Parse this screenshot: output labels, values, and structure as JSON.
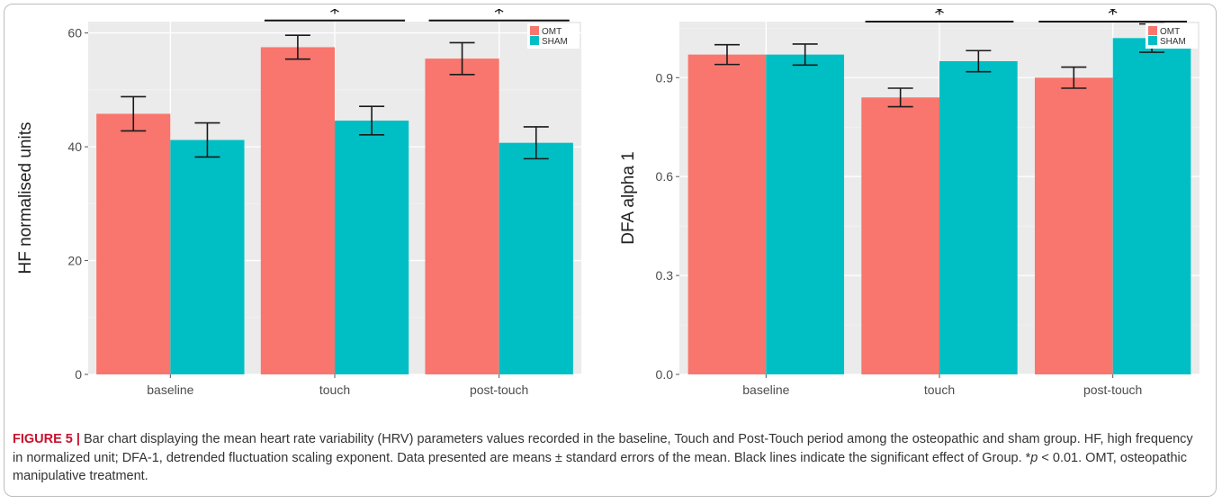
{
  "colors": {
    "omt": "#F8766D",
    "sham": "#00BFC4",
    "panel_bg": "#EBEBEB",
    "grid_major": "#FFFFFF",
    "grid_minor": "#F4F4F4",
    "error_bar": "#1a1a1a",
    "caption_label": "#C8102E"
  },
  "chart_data": [
    {
      "type": "bar",
      "categories": [
        "baseline",
        "touch",
        "post-touch"
      ],
      "series": [
        {
          "name": "OMT",
          "values": [
            45.8,
            57.5,
            55.5
          ],
          "errors": [
            3.0,
            2.1,
            2.8
          ]
        },
        {
          "name": "SHAM",
          "values": [
            41.2,
            44.6,
            40.7
          ],
          "errors": [
            3.0,
            2.5,
            2.8
          ]
        }
      ],
      "xlabel": "",
      "ylabel": "HF normalised units",
      "ylim": [
        0,
        62
      ],
      "yticks": [
        0,
        20,
        40,
        60
      ],
      "tick_labels": [
        "0",
        "20",
        "40",
        "60"
      ],
      "minor_ticks": [
        10,
        30,
        50
      ],
      "significance": [
        {
          "category": "touch",
          "label": "*",
          "y": 62.2
        },
        {
          "category": "post-touch",
          "label": "*",
          "y": 62.2
        }
      ],
      "legend": {
        "position": "top-right",
        "entries": [
          "OMT",
          "SHAM"
        ]
      },
      "grid": true
    },
    {
      "type": "bar",
      "categories": [
        "baseline",
        "touch",
        "post-touch"
      ],
      "series": [
        {
          "name": "OMT",
          "values": [
            0.97,
            0.84,
            0.9
          ],
          "errors": [
            0.03,
            0.028,
            0.032
          ]
        },
        {
          "name": "SHAM",
          "values": [
            0.97,
            0.95,
            1.02
          ],
          "errors": [
            0.032,
            0.032,
            0.043
          ]
        }
      ],
      "xlabel": "",
      "ylabel": "DFA alpha 1",
      "ylim": [
        0,
        1.07
      ],
      "yticks": [
        0,
        0.3,
        0.6,
        0.9
      ],
      "tick_labels": [
        "0.0",
        "0.3",
        "0.6",
        "0.9"
      ],
      "minor_ticks": [
        0.15,
        0.45,
        0.75,
        1.05
      ],
      "significance": [
        {
          "category": "touch",
          "label": "*",
          "y": 1.07
        },
        {
          "category": "post-touch",
          "label": "*",
          "y": 1.07
        }
      ],
      "legend": {
        "position": "top-right",
        "entries": [
          "OMT",
          "SHAM"
        ]
      },
      "grid": true
    }
  ],
  "caption": {
    "label": "FIGURE 5 |",
    "text_1": " Bar chart displaying the mean heart rate variability (HRV) parameters values recorded in the baseline, Touch and Post-Touch period among the osteopathic and sham group. HF, high frequency in normalized unit; DFA-1, detrended fluctuation scaling exponent. Data presented are means ± standard errors of the mean. Black lines indicate the significant effect of Group. *",
    "p_symbol": "p",
    "text_2": " < 0.01. OMT, osteopathic manipulative treatment."
  }
}
